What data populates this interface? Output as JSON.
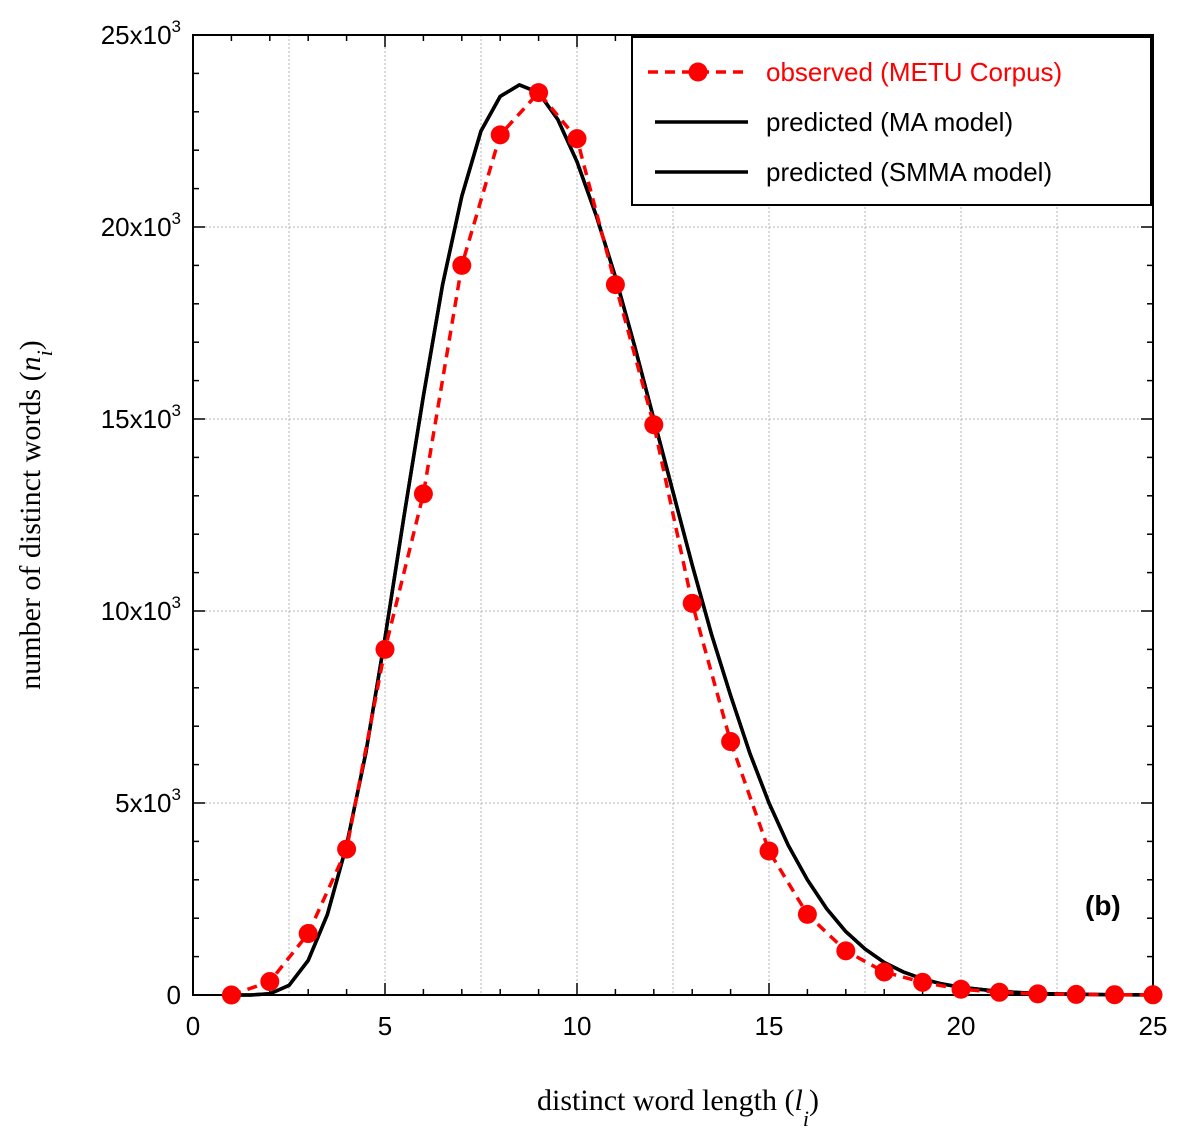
{
  "chart_data": {
    "type": "line",
    "xlabel_main": "distinct word length (",
    "xlabel_var": "l",
    "xlabel_sub": "i",
    "xlabel_end": ")",
    "ylabel_main": "number of distinct words (",
    "ylabel_var": "n",
    "ylabel_sub": "i",
    "ylabel_end": ")",
    "panel_label": "(b)",
    "xlim": [
      0,
      25
    ],
    "ylim": [
      0,
      25000
    ],
    "x_ticks": [
      {
        "value": 0,
        "label": "0"
      },
      {
        "value": 5,
        "label": "5"
      },
      {
        "value": 10,
        "label": "10"
      },
      {
        "value": 15,
        "label": "15"
      },
      {
        "value": 20,
        "label": "20"
      },
      {
        "value": 25,
        "label": "25"
      }
    ],
    "y_ticks": [
      {
        "value": 0,
        "base": "0",
        "exp": ""
      },
      {
        "value": 5000,
        "base": "5x10",
        "exp": "3"
      },
      {
        "value": 10000,
        "base": "10x10",
        "exp": "3"
      },
      {
        "value": 15000,
        "base": "15x10",
        "exp": "3"
      },
      {
        "value": 20000,
        "base": "20x10",
        "exp": "3"
      },
      {
        "value": 25000,
        "base": "25x10",
        "exp": "3"
      }
    ],
    "grid": true,
    "legend_position": "top-right",
    "series": [
      {
        "name": "observed (METU Corpus)",
        "color": "#ff0000",
        "style": "dashed-markers",
        "x": [
          1,
          2,
          3,
          4,
          5,
          6,
          7,
          8,
          9,
          10,
          11,
          12,
          13,
          14,
          15,
          16,
          17,
          18,
          19,
          20,
          21,
          22,
          23,
          24,
          25
        ],
        "y": [
          0,
          350,
          1600,
          3800,
          9000,
          13050,
          19000,
          22400,
          23500,
          22300,
          18500,
          14850,
          10200,
          6600,
          3750,
          2100,
          1150,
          600,
          330,
          150,
          70,
          30,
          15,
          8,
          5
        ]
      },
      {
        "name": "predicted (MA model)",
        "color": "#000000",
        "style": "solid",
        "x": [
          1,
          1.5,
          2,
          2.5,
          3,
          3.5,
          4,
          4.5,
          5,
          5.5,
          6,
          6.5,
          7,
          7.5,
          8,
          8.5,
          9,
          9.5,
          10,
          10.5,
          11,
          11.5,
          12,
          12.5,
          13,
          13.5,
          14,
          14.5,
          15,
          15.5,
          16,
          16.5,
          17,
          17.5,
          18,
          18.5,
          19,
          19.5,
          20,
          21,
          22,
          23,
          24,
          25
        ],
        "y": [
          0,
          0,
          30,
          250,
          900,
          2100,
          3900,
          6300,
          9300,
          12500,
          15600,
          18500,
          20800,
          22500,
          23400,
          23700,
          23500,
          22800,
          21700,
          20300,
          18700,
          16900,
          15000,
          13100,
          11200,
          9400,
          7800,
          6300,
          5000,
          3900,
          3000,
          2250,
          1650,
          1200,
          850,
          600,
          420,
          290,
          200,
          90,
          40,
          17,
          7,
          3
        ]
      },
      {
        "name": "predicted (SMMA model)",
        "color": "#000000",
        "style": "solid",
        "x": [
          1,
          1.5,
          2,
          2.5,
          3,
          3.5,
          4,
          4.5,
          5,
          5.5,
          6,
          6.5,
          7,
          7.5,
          8,
          8.5,
          9,
          9.5,
          10,
          10.5,
          11,
          11.5,
          12,
          12.5,
          13,
          13.5,
          14,
          14.5,
          15,
          15.5,
          16,
          16.5,
          17,
          17.5,
          18,
          18.5,
          19,
          19.5,
          20,
          21,
          22,
          23,
          24,
          25
        ],
        "y": [
          0,
          0,
          30,
          250,
          900,
          2100,
          3900,
          6300,
          9300,
          12500,
          15600,
          18500,
          20800,
          22500,
          23400,
          23700,
          23500,
          22800,
          21700,
          20300,
          18700,
          16900,
          15000,
          13100,
          11200,
          9400,
          7800,
          6300,
          5000,
          3900,
          3000,
          2250,
          1650,
          1200,
          850,
          600,
          420,
          290,
          200,
          90,
          40,
          17,
          7,
          3
        ]
      }
    ]
  }
}
